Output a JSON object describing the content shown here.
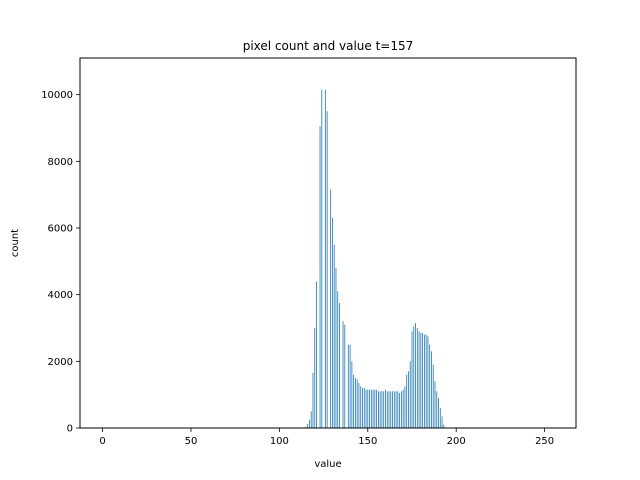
{
  "chart_data": {
    "type": "bar",
    "title": "pixel count and value t=157",
    "xlabel": "value",
    "ylabel": "count",
    "xlim": [
      -12.75,
      267.75
    ],
    "ylim": [
      0,
      11100
    ],
    "xticks": [
      0,
      50,
      100,
      150,
      200,
      250
    ],
    "yticks": [
      0,
      2000,
      4000,
      6000,
      8000,
      10000
    ],
    "grid": false,
    "legend": "none",
    "bar_color": "#1f77b4",
    "bar_width": 0.35,
    "x": [
      115,
      116,
      117,
      118,
      119,
      120,
      121,
      122,
      123,
      124,
      125,
      126,
      127,
      128,
      129,
      130,
      131,
      132,
      133,
      134,
      135,
      136,
      137,
      138,
      139,
      140,
      141,
      142,
      143,
      144,
      145,
      146,
      147,
      148,
      149,
      150,
      151,
      152,
      153,
      154,
      155,
      156,
      157,
      158,
      159,
      160,
      161,
      162,
      163,
      164,
      165,
      166,
      167,
      168,
      169,
      170,
      171,
      172,
      173,
      174,
      175,
      176,
      177,
      178,
      179,
      180,
      181,
      182,
      183,
      184,
      185,
      186,
      187,
      188,
      189,
      190,
      191,
      192,
      193,
      194,
      195,
      196,
      197,
      198,
      199,
      200,
      201,
      202
    ],
    "values": [
      40,
      120,
      250,
      500,
      1650,
      3000,
      4400,
      0,
      9050,
      10150,
      0,
      10150,
      9500,
      0,
      7150,
      6300,
      5500,
      4800,
      4100,
      3750,
      0,
      3200,
      3100,
      0,
      2500,
      2500,
      2000,
      1600,
      1500,
      1450,
      1350,
      1250,
      1200,
      1200,
      1150,
      1150,
      1150,
      1150,
      1150,
      1150,
      1150,
      1100,
      1100,
      1100,
      1100,
      1150,
      1100,
      1100,
      1100,
      1100,
      1100,
      1100,
      1100,
      1050,
      1100,
      1150,
      1250,
      1600,
      1700,
      2000,
      2900,
      3050,
      3150,
      3000,
      2900,
      2850,
      2850,
      2800,
      2800,
      2750,
      2500,
      2300,
      1900,
      1400,
      1100,
      900,
      600,
      350,
      100,
      0,
      0,
      0,
      0,
      0,
      0,
      0,
      0,
      0
    ]
  }
}
